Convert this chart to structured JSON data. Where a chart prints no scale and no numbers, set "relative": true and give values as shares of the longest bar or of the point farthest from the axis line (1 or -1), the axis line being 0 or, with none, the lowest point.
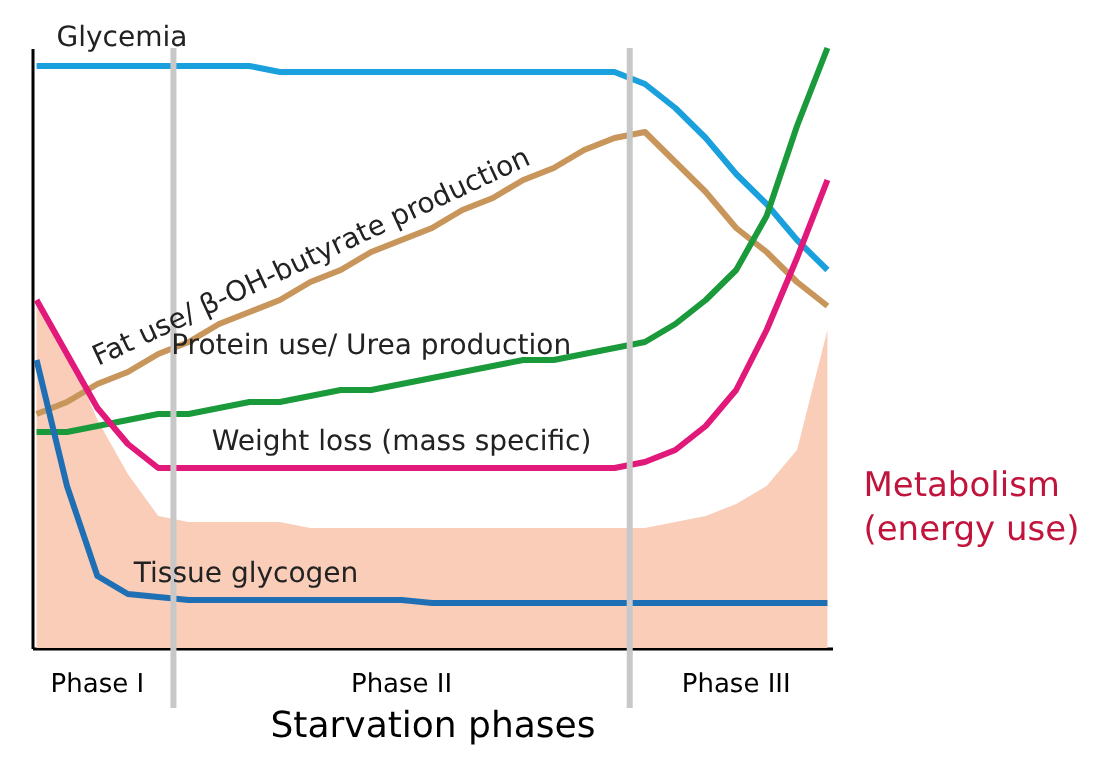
{
  "chart_data": {
    "type": "line",
    "relative": true,
    "xlabel": "Starvation phases",
    "grid": false,
    "legend": false,
    "marker": "none",
    "line_style": "solid",
    "categories": [
      null,
      null,
      "Phase I",
      null,
      null,
      null,
      null,
      null,
      null,
      null,
      null,
      null,
      "Phase II",
      null,
      null,
      null,
      null,
      null,
      null,
      null,
      null,
      null,
      null,
      "Phase III",
      null,
      null,
      null
    ],
    "series": [
      {
        "name": "Metabolism\n(energy use)",
        "type": "area",
        "color": "#f9cdb8",
        "values": [
          0.58,
          0.5,
          0.38,
          0.29,
          0.22,
          0.21,
          0.21,
          0.21,
          0.21,
          0.2,
          0.2,
          0.2,
          0.2,
          0.2,
          0.2,
          0.2,
          0.2,
          0.2,
          0.2,
          0.2,
          0.2,
          0.21,
          0.22,
          0.24,
          0.27,
          0.33,
          0.53
        ]
      },
      {
        "name": "Glycemia",
        "color": "#1aa0dc",
        "values": [
          0.97,
          0.97,
          0.97,
          0.97,
          0.97,
          0.97,
          0.97,
          0.97,
          0.96,
          0.96,
          0.96,
          0.96,
          0.96,
          0.96,
          0.96,
          0.96,
          0.96,
          0.96,
          0.96,
          0.96,
          0.94,
          0.9,
          0.85,
          0.79,
          0.74,
          0.68,
          0.63
        ]
      },
      {
        "name": "Fat use/  β-OH-butyrate production",
        "color": "#c8955a",
        "values": [
          0.39,
          0.41,
          0.44,
          0.46,
          0.49,
          0.51,
          0.54,
          0.56,
          0.58,
          0.61,
          0.63,
          0.66,
          0.68,
          0.7,
          0.73,
          0.75,
          0.78,
          0.8,
          0.83,
          0.85,
          0.86,
          0.81,
          0.76,
          0.7,
          0.66,
          0.61,
          0.57
        ]
      },
      {
        "name": "Protein use/ Urea production",
        "color": "#1a9a3a",
        "values": [
          0.36,
          0.36,
          0.37,
          0.38,
          0.39,
          0.39,
          0.4,
          0.41,
          0.41,
          0.42,
          0.43,
          0.43,
          0.44,
          0.45,
          0.46,
          0.47,
          0.48,
          0.48,
          0.49,
          0.5,
          0.51,
          0.54,
          0.58,
          0.63,
          0.72,
          0.87,
          1.0
        ]
      },
      {
        "name": "Weight loss (mass specific)",
        "color": "#e0197a",
        "values": [
          0.58,
          0.49,
          0.4,
          0.34,
          0.3,
          0.3,
          0.3,
          0.3,
          0.3,
          0.3,
          0.3,
          0.3,
          0.3,
          0.3,
          0.3,
          0.3,
          0.3,
          0.3,
          0.3,
          0.3,
          0.31,
          0.33,
          0.37,
          0.43,
          0.53,
          0.65,
          0.78
        ]
      },
      {
        "name": "Tissue glycogen",
        "color": "#1f6fb5",
        "values": [
          0.48,
          0.27,
          0.12,
          0.09,
          0.085,
          0.08,
          0.08,
          0.08,
          0.08,
          0.08,
          0.08,
          0.08,
          0.08,
          0.075,
          0.075,
          0.075,
          0.075,
          0.075,
          0.075,
          0.075,
          0.075,
          0.075,
          0.075,
          0.075,
          0.075,
          0.075,
          0.075
        ]
      }
    ]
  }
}
